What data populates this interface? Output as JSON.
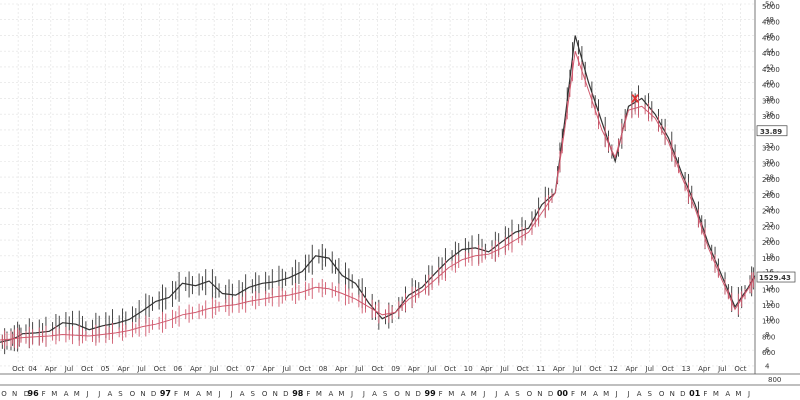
{
  "chart_data": {
    "type": "line",
    "title": "",
    "xlabel": "",
    "ylabel": "",
    "grid": true,
    "x": [
      1995.83,
      1995.9,
      1995.95,
      1996.0,
      1996.1,
      1996.2,
      1996.3,
      1996.4,
      1996.5,
      1996.6,
      1996.7,
      1996.8,
      1996.9,
      1997.0,
      1997.1,
      1997.2,
      1997.3,
      1997.4,
      1997.5,
      1997.6,
      1997.7,
      1997.8,
      1997.9,
      1998.0,
      1998.1,
      1998.2,
      1998.3,
      1998.4,
      1998.5,
      1998.6,
      1998.7,
      1998.8,
      1998.9,
      1999.0,
      1999.1,
      1999.2,
      1999.3,
      1999.4,
      1999.5,
      1999.6,
      1999.7,
      1999.8,
      1999.9,
      2000.0,
      2000.07,
      2000.15,
      2000.25,
      2000.35,
      2000.45,
      2000.55,
      2000.65,
      2000.75,
      2000.85,
      2000.95,
      2001.05,
      2001.15,
      2001.25,
      2001.35,
      2001.45,
      2001.5
    ],
    "series": [
      {
        "color": "#333333",
        "values": [
          7.0,
          7.3,
          7.6,
          8.1,
          8.2,
          8.4,
          9.5,
          9.3,
          8.6,
          9.1,
          9.4,
          9.9,
          11.0,
          12.2,
          12.7,
          14.5,
          14.2,
          14.8,
          13.2,
          13.0,
          14.0,
          14.5,
          14.7,
          15.2,
          16.0,
          18.0,
          17.7,
          15.5,
          14.5,
          12.0,
          10.0,
          10.8,
          13.0,
          14.0,
          15.8,
          17.5,
          18.8,
          19.0,
          18.5,
          19.8,
          21.0,
          21.5,
          24.5,
          26.0,
          35.0,
          46.0,
          40.0,
          35.0,
          30.0,
          37.0,
          38.0,
          36.0,
          33.0,
          28.5,
          24.5,
          19.5,
          15.5,
          11.5,
          14.0,
          15.5
        ]
      },
      {
        "color": "#d05a6e",
        "values": [
          7.3,
          7.4,
          7.5,
          7.6,
          7.7,
          7.8,
          8.0,
          7.9,
          7.8,
          8.0,
          8.2,
          8.5,
          9.0,
          9.3,
          9.8,
          10.5,
          10.8,
          11.3,
          11.6,
          11.8,
          12.2,
          12.5,
          12.8,
          13.0,
          13.4,
          14.0,
          13.8,
          13.2,
          12.5,
          11.5,
          10.5,
          10.8,
          12.5,
          13.5,
          15.0,
          16.5,
          17.5,
          18.0,
          18.2,
          19.0,
          20.0,
          21.0,
          23.5,
          26.0,
          34.0,
          44.0,
          39.0,
          34.0,
          30.5,
          36.5,
          37.0,
          35.5,
          32.5,
          28.0,
          24.0,
          19.0,
          15.0,
          11.2,
          13.8,
          15.3
        ]
      }
    ],
    "ylim": [
      4.5,
      50
    ],
    "y_ticks_outer": [
      "50",
      "48",
      "46",
      "44",
      "42",
      "40",
      "38",
      "36",
      "34",
      "32",
      "30",
      "28",
      "26",
      "24",
      "22",
      "20",
      "18",
      "16",
      "14",
      "12",
      "10",
      "8",
      "6",
      "4"
    ],
    "y_ticks_inner": [
      "5000",
      "4800",
      "4600",
      "4400",
      "4200",
      "4000",
      "3800",
      "3600",
      "3400",
      "3200",
      "3000",
      "2800",
      "2600",
      "2400",
      "2200",
      "2000",
      "1800",
      "1600",
      "1400",
      "1200",
      "1000",
      "800",
      "600",
      "400"
    ],
    "y_value_label": "33.89",
    "y_value_label_at": 33.89,
    "y_value_label2": "1529.43",
    "y_value_label2_at": 15.3,
    "y_bottom_label": "800",
    "marker": {
      "x": 2000.6,
      "y": 38.0,
      "label": "X"
    },
    "x_months": [
      {
        "t": 1995.78,
        "label": "O"
      },
      {
        "t": 1995.86,
        "label": "N"
      },
      {
        "t": 1995.95,
        "label": "D"
      },
      {
        "t": 1996.0,
        "label": "96",
        "bold": true
      },
      {
        "t": 1996.08,
        "label": "F"
      },
      {
        "t": 1996.16,
        "label": "M"
      },
      {
        "t": 1996.25,
        "label": "A"
      },
      {
        "t": 1996.33,
        "label": "M"
      },
      {
        "t": 1996.41,
        "label": "J"
      },
      {
        "t": 1996.5,
        "label": "J"
      },
      {
        "t": 1996.58,
        "label": "A"
      },
      {
        "t": 1996.66,
        "label": "S"
      },
      {
        "t": 1996.75,
        "label": "O"
      },
      {
        "t": 1996.83,
        "label": "N"
      },
      {
        "t": 1996.91,
        "label": "D"
      },
      {
        "t": 1997.0,
        "label": "97",
        "bold": true
      },
      {
        "t": 1997.08,
        "label": "F"
      },
      {
        "t": 1997.16,
        "label": "M"
      },
      {
        "t": 1997.25,
        "label": "A"
      },
      {
        "t": 1997.33,
        "label": "M"
      },
      {
        "t": 1997.41,
        "label": "J"
      },
      {
        "t": 1997.5,
        "label": "J"
      },
      {
        "t": 1997.58,
        "label": "A"
      },
      {
        "t": 1997.66,
        "label": "S"
      },
      {
        "t": 1997.75,
        "label": "O"
      },
      {
        "t": 1997.83,
        "label": "N"
      },
      {
        "t": 1997.91,
        "label": "D"
      },
      {
        "t": 1998.0,
        "label": "98",
        "bold": true
      },
      {
        "t": 1998.08,
        "label": "F"
      },
      {
        "t": 1998.16,
        "label": "M"
      },
      {
        "t": 1998.25,
        "label": "A"
      },
      {
        "t": 1998.33,
        "label": "M"
      },
      {
        "t": 1998.41,
        "label": "J"
      },
      {
        "t": 1998.5,
        "label": "J"
      },
      {
        "t": 1998.58,
        "label": "A"
      },
      {
        "t": 1998.66,
        "label": "S"
      },
      {
        "t": 1998.75,
        "label": "O"
      },
      {
        "t": 1998.83,
        "label": "N"
      },
      {
        "t": 1998.91,
        "label": "D"
      },
      {
        "t": 1999.0,
        "label": "99",
        "bold": true
      },
      {
        "t": 1999.08,
        "label": "F"
      },
      {
        "t": 1999.16,
        "label": "M"
      },
      {
        "t": 1999.25,
        "label": "A"
      },
      {
        "t": 1999.33,
        "label": "M"
      },
      {
        "t": 1999.41,
        "label": "J"
      },
      {
        "t": 1999.5,
        "label": "J"
      },
      {
        "t": 1999.58,
        "label": "A"
      },
      {
        "t": 1999.66,
        "label": "S"
      },
      {
        "t": 1999.75,
        "label": "O"
      },
      {
        "t": 1999.83,
        "label": "N"
      },
      {
        "t": 1999.91,
        "label": "D"
      },
      {
        "t": 2000.0,
        "label": "00",
        "bold": true
      },
      {
        "t": 2000.08,
        "label": "F"
      },
      {
        "t": 2000.16,
        "label": "M"
      },
      {
        "t": 2000.25,
        "label": "A"
      },
      {
        "t": 2000.33,
        "label": "M"
      },
      {
        "t": 2000.41,
        "label": "J"
      },
      {
        "t": 2000.5,
        "label": "J"
      },
      {
        "t": 2000.58,
        "label": "A"
      },
      {
        "t": 2000.66,
        "label": "S"
      },
      {
        "t": 2000.75,
        "label": "O"
      },
      {
        "t": 2000.83,
        "label": "N"
      },
      {
        "t": 2000.91,
        "label": "D"
      },
      {
        "t": 2001.0,
        "label": "01",
        "bold": true
      },
      {
        "t": 2001.08,
        "label": "F"
      },
      {
        "t": 2001.16,
        "label": "M"
      },
      {
        "t": 2001.25,
        "label": "A"
      },
      {
        "t": 2001.33,
        "label": "M"
      },
      {
        "t": 2001.41,
        "label": "J"
      }
    ],
    "x_upper": [
      {
        "t": 1995.8,
        "label": "Oct"
      },
      {
        "t": 1996.0,
        "label": "04"
      },
      {
        "t": 1996.25,
        "label": "Apr"
      },
      {
        "t": 1996.5,
        "label": "Jul"
      },
      {
        "t": 1996.75,
        "label": "Oct"
      },
      {
        "t": 1997.0,
        "label": "05"
      },
      {
        "t": 1997.25,
        "label": "Apr"
      },
      {
        "t": 1997.5,
        "label": "Jul"
      },
      {
        "t": 1997.75,
        "label": "Oct"
      },
      {
        "t": 1998.0,
        "label": "06"
      },
      {
        "t": 1998.25,
        "label": "Apr"
      },
      {
        "t": 1998.5,
        "label": "Jul"
      },
      {
        "t": 1998.75,
        "label": "Oct"
      },
      {
        "t": 1999.0,
        "label": "07"
      },
      {
        "t": 1999.25,
        "label": "Apr"
      },
      {
        "t": 1999.5,
        "label": "Jul"
      },
      {
        "t": 1999.75,
        "label": "Oct"
      },
      {
        "t": 2000.0,
        "label": "08"
      },
      {
        "t": 2000.25,
        "label": "Apr"
      },
      {
        "t": 2000.5,
        "label": "Jul"
      },
      {
        "t": 2000.75,
        "label": "Oct"
      },
      {
        "t": 2001.0,
        "label": "09"
      },
      {
        "t": 2001.25,
        "label": "Apr"
      },
      {
        "t": 2001.5,
        "label": "Jul"
      },
      {
        "t": 2001.75,
        "label": "Oct"
      },
      {
        "t": 2002.0,
        "label": "10"
      },
      {
        "t": 2002.25,
        "label": "Apr"
      },
      {
        "t": 2002.5,
        "label": "Jul"
      },
      {
        "t": 2002.75,
        "label": "Oct"
      },
      {
        "t": 2003.0,
        "label": "11"
      },
      {
        "t": 2003.25,
        "label": "Apr"
      },
      {
        "t": 2003.5,
        "label": "Jul"
      },
      {
        "t": 2003.75,
        "label": "Oct"
      },
      {
        "t": 2004.0,
        "label": "12"
      },
      {
        "t": 2004.25,
        "label": "Apr"
      },
      {
        "t": 2004.5,
        "label": "Jul"
      },
      {
        "t": 2004.75,
        "label": "Oct"
      },
      {
        "t": 2005.0,
        "label": "13"
      },
      {
        "t": 2005.25,
        "label": "Apr"
      },
      {
        "t": 2005.5,
        "label": "Jul"
      },
      {
        "t": 2005.75,
        "label": "Oct"
      }
    ],
    "x_upper_range": [
      1995.55,
      2005.95
    ]
  }
}
